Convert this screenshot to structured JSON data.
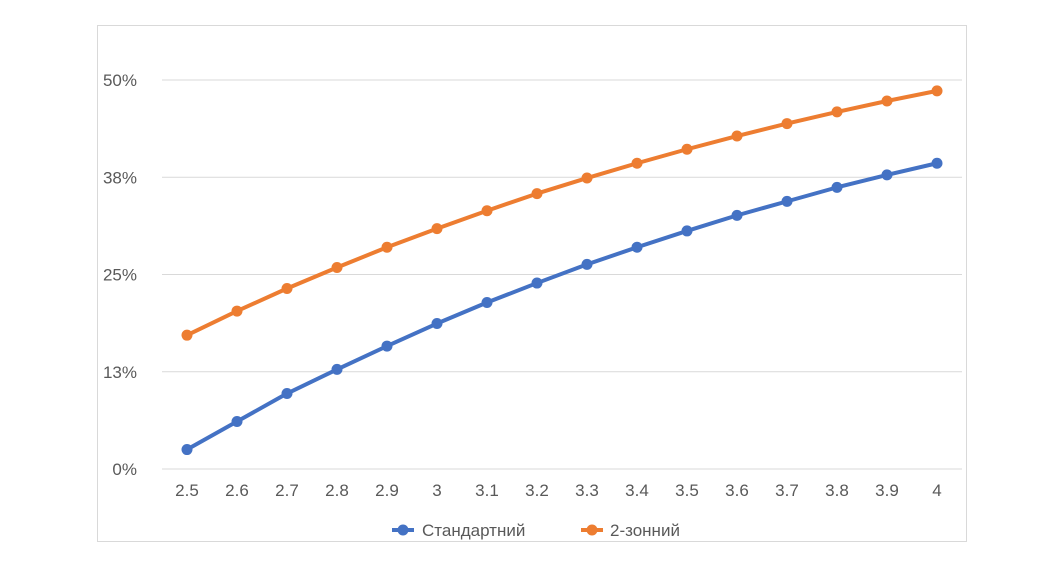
{
  "chart_data": {
    "type": "line",
    "title": "",
    "xlabel": "",
    "ylabel": "",
    "categories": [
      "2.5",
      "2.6",
      "2.7",
      "2.8",
      "2.9",
      "3",
      "3.1",
      "3.2",
      "3.3",
      "3.4",
      "3.5",
      "3.6",
      "3.7",
      "3.8",
      "3.9",
      "4"
    ],
    "y_ticks": [
      "0%",
      "13%",
      "25%",
      "38%",
      "50%"
    ],
    "ylim": [
      0,
      0.5
    ],
    "grid": true,
    "legend_position": "bottom",
    "series": [
      {
        "name": "Стандартний",
        "color": "#4472C4",
        "values": [
          0.025,
          0.061,
          0.097,
          0.128,
          0.158,
          0.187,
          0.214,
          0.239,
          0.263,
          0.285,
          0.306,
          0.326,
          0.344,
          0.362,
          0.378,
          0.393
        ]
      },
      {
        "name": "2-зонний",
        "color": "#ED7D31",
        "values": [
          0.172,
          0.203,
          0.232,
          0.259,
          0.285,
          0.309,
          0.332,
          0.354,
          0.374,
          0.393,
          0.411,
          0.428,
          0.444,
          0.459,
          0.473,
          0.486
        ]
      }
    ]
  }
}
